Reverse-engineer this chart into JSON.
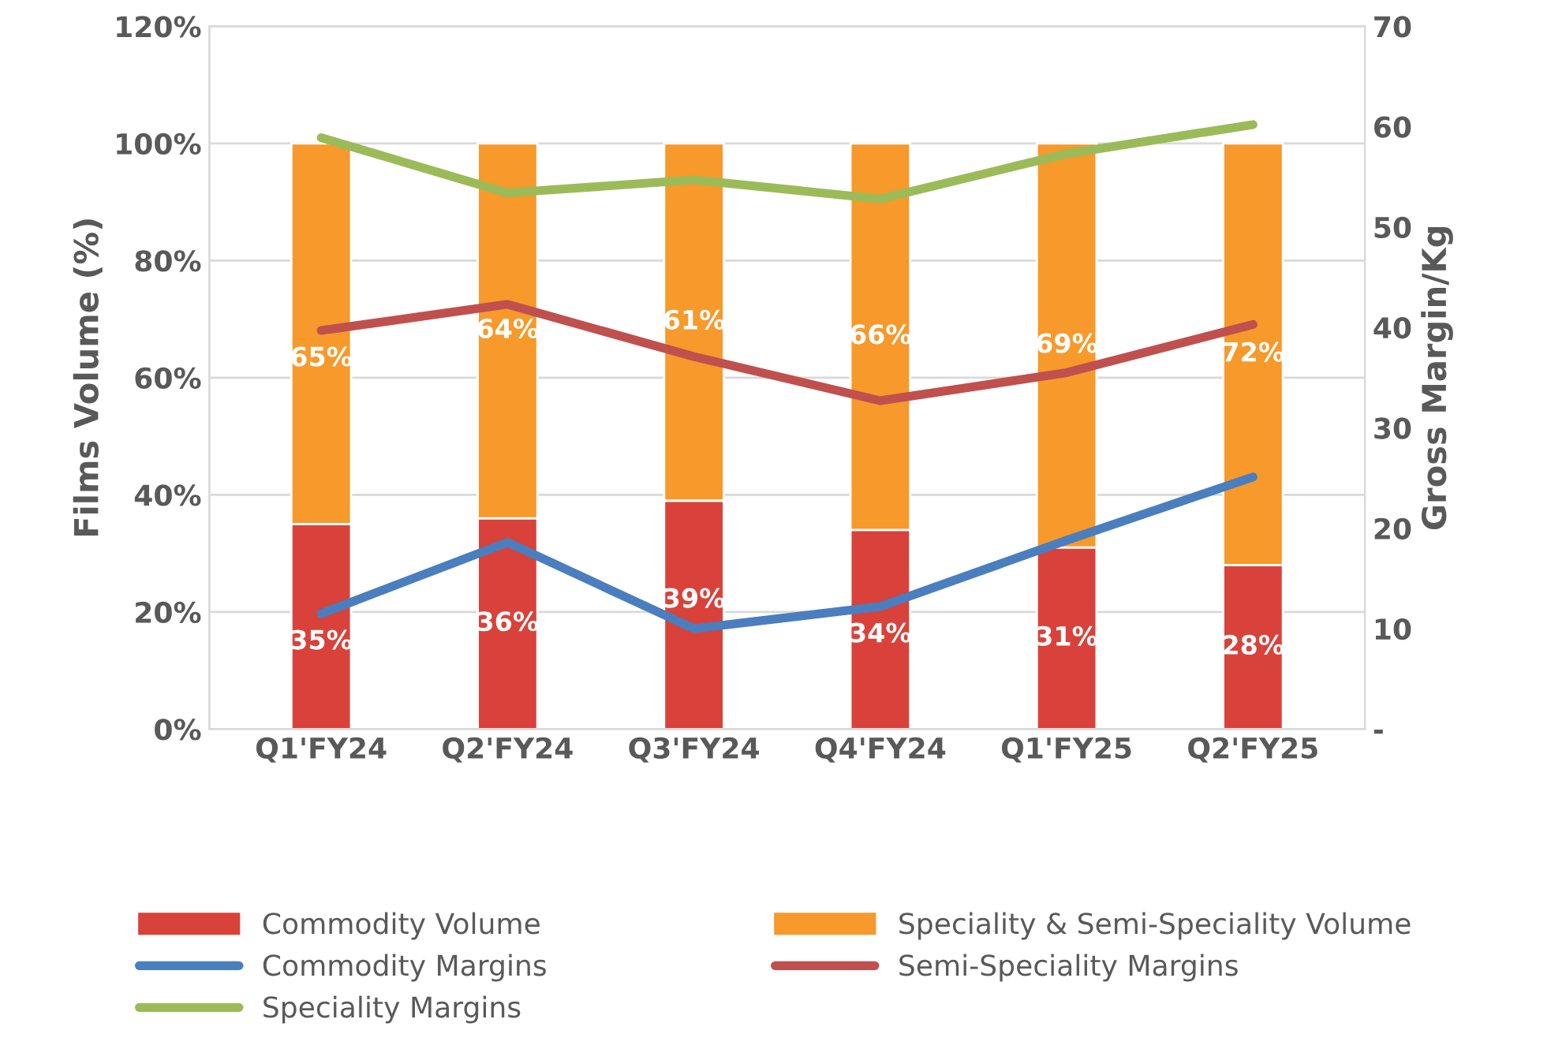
{
  "chart_data": {
    "type": "bar",
    "stacked": true,
    "categories": [
      "Q1'FY24",
      "Q2'FY24",
      "Q3'FY24",
      "Q4'FY24",
      "Q1'FY25",
      "Q2'FY25"
    ],
    "ylabel": "Films Volume (%)",
    "y2label": "Gross Margin/Kg",
    "ylim": [
      0,
      120
    ],
    "yticks": [
      {
        "value": 0,
        "label": "0%"
      },
      {
        "value": 20,
        "label": "20%"
      },
      {
        "value": 40,
        "label": "40%"
      },
      {
        "value": 60,
        "label": "60%"
      },
      {
        "value": 80,
        "label": "80%"
      },
      {
        "value": 100,
        "label": "100%"
      },
      {
        "value": 120,
        "label": "120%"
      }
    ],
    "y2lim": [
      0,
      70
    ],
    "y2ticks": [
      {
        "value": 0,
        "label": "-"
      },
      10,
      20,
      30,
      40,
      50,
      60,
      70
    ],
    "grid": "y",
    "legend": "bottom",
    "series": [
      {
        "name": "Commodity Volume",
        "type": "bar",
        "color": "#d9423a",
        "values": [
          35,
          36,
          39,
          34,
          31,
          28
        ],
        "value_labels": [
          "35%",
          "36%",
          "39%",
          "34%",
          "31%",
          "28%"
        ]
      },
      {
        "name": "Speciality & Semi-Speciality Volume",
        "type": "bar",
        "color": "#f7992b",
        "values": [
          65,
          64,
          61,
          66,
          69,
          72
        ],
        "value_labels": [
          "65%",
          "64%",
          "61%",
          "66%",
          "69%",
          "72%"
        ]
      },
      {
        "name": "Commodity Margins",
        "type": "line",
        "axis": "y2",
        "color": "#4a7ebf",
        "values": [
          11.5,
          18.6,
          10,
          12.2,
          18.8,
          25.1
        ]
      },
      {
        "name": "Semi-Speciality Margins",
        "type": "line",
        "axis": "y2",
        "color": "#c0504d",
        "values": [
          39.7,
          42.3,
          37.1,
          32.7,
          35.5,
          40.3
        ]
      },
      {
        "name": "Speciality Margins",
        "type": "line",
        "axis": "y2",
        "color": "#9bbb59",
        "values": [
          58.9,
          53.4,
          54.7,
          52.8,
          57.3,
          60.2
        ]
      }
    ]
  }
}
